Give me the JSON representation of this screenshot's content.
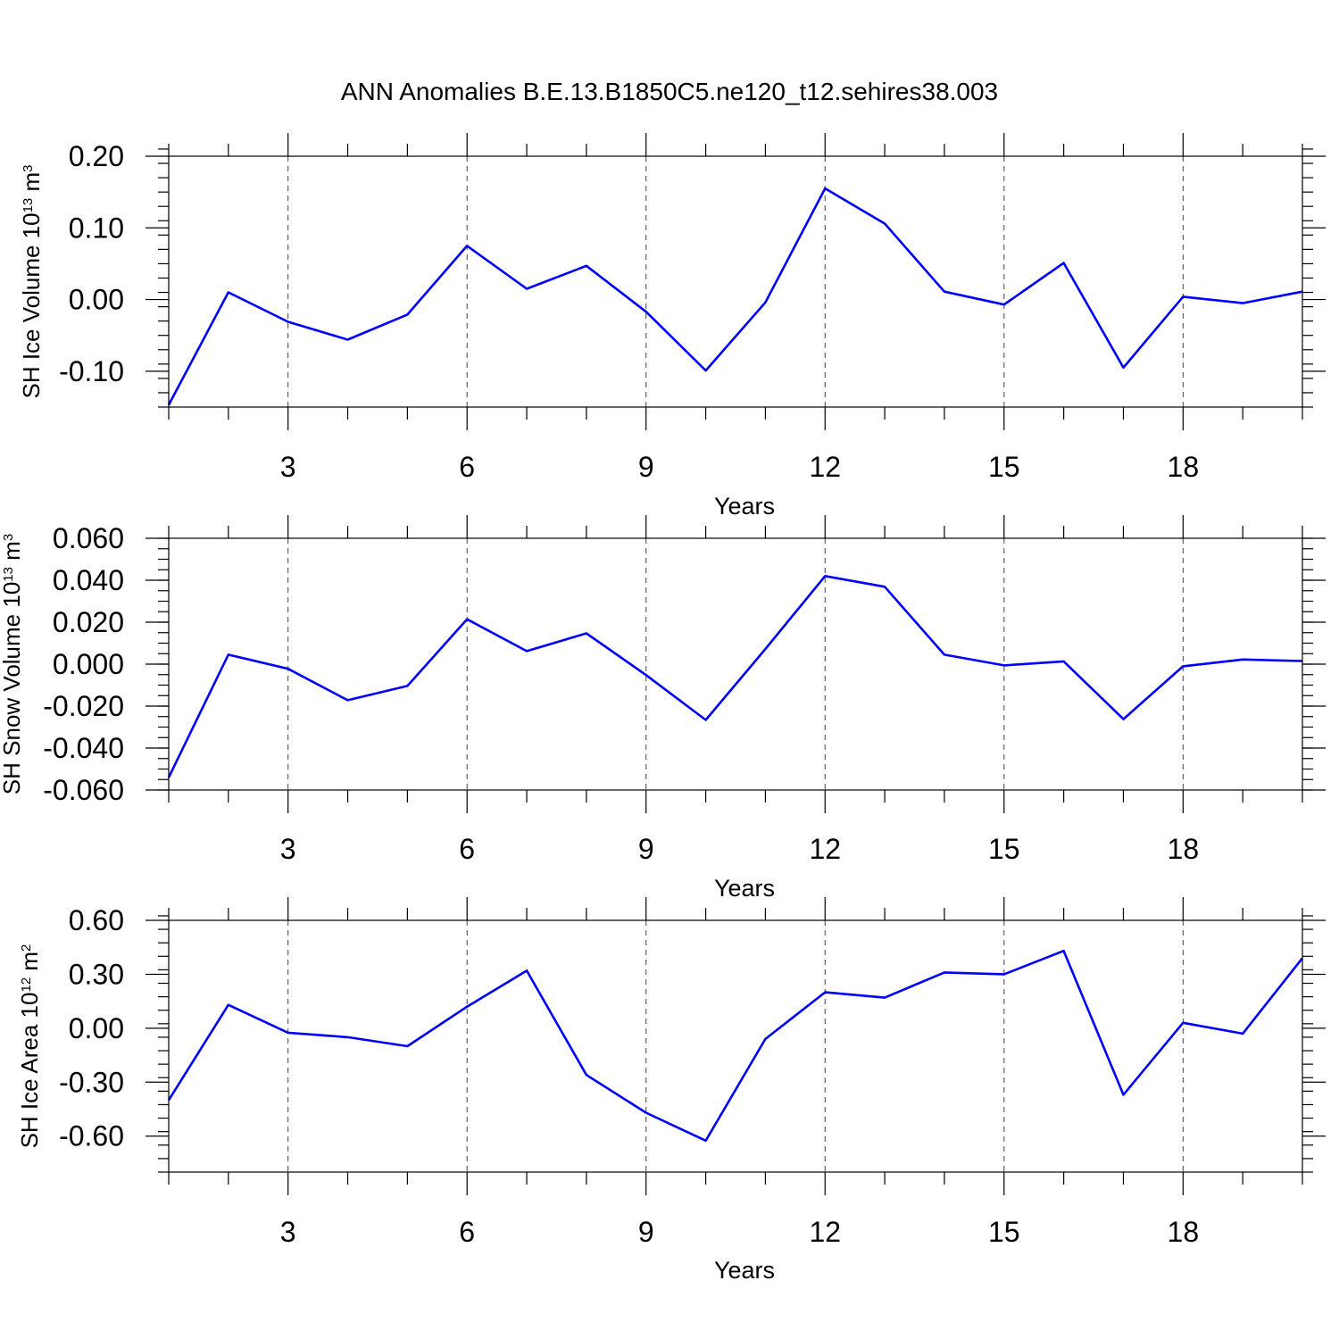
{
  "title": "ANN Anomalies B.E.13.B1850C5.ne120_t12.sehires38.003",
  "colors": {
    "line": "#0000ff",
    "axis": "#000000",
    "grid": "#444444"
  },
  "chart_data": [
    {
      "type": "line",
      "title": "ANN Anomalies B.E.13.B1850C5.ne120_t12.sehires38.003",
      "xlabel": "Years",
      "ylabel": {
        "text": "SH Ice Volume 10",
        "sup1": "13",
        "mid": " m",
        "sup2": "3"
      },
      "xlim": [
        1,
        20
      ],
      "ylim": [
        -0.15,
        0.2
      ],
      "xticks": [
        3,
        6,
        9,
        12,
        15,
        18
      ],
      "xtick_labels": [
        "3",
        "6",
        "9",
        "12",
        "15",
        "18"
      ],
      "yticks": [
        0.2,
        0.1,
        0.0,
        -0.1
      ],
      "ytick_labels": [
        "0.20",
        "0.10",
        "0.00",
        "-0.10"
      ],
      "yminor_step": 0.02,
      "grid": "x dashed",
      "series": [
        {
          "name": "SH Ice Volume",
          "x": [
            1,
            2,
            3,
            4,
            5,
            6,
            7,
            8,
            9,
            10,
            11,
            12,
            13,
            14,
            15,
            16,
            17,
            18,
            19,
            20
          ],
          "values": [
            -0.147,
            0.01,
            -0.031,
            -0.056,
            -0.021,
            0.075,
            0.015,
            0.047,
            -0.017,
            -0.099,
            -0.004,
            0.155,
            0.106,
            0.011,
            -0.007,
            0.051,
            -0.095,
            0.004,
            -0.005,
            0.011
          ]
        }
      ]
    },
    {
      "type": "line",
      "xlabel": "Years",
      "ylabel": {
        "text": "SH Snow Volume 10",
        "sup1": "13",
        "mid": " m",
        "sup2": "3"
      },
      "xlim": [
        1,
        20
      ],
      "ylim": [
        -0.06,
        0.06
      ],
      "xticks": [
        3,
        6,
        9,
        12,
        15,
        18
      ],
      "xtick_labels": [
        "3",
        "6",
        "9",
        "12",
        "15",
        "18"
      ],
      "yticks": [
        0.06,
        0.04,
        0.02,
        0.0,
        -0.02,
        -0.04,
        -0.06
      ],
      "ytick_labels": [
        "0.060",
        "0.040",
        "0.020",
        "0.000",
        "-0.020",
        "-0.040",
        "-0.060"
      ],
      "yminor_step": 0.005,
      "grid": "x dashed",
      "series": [
        {
          "name": "SH Snow Volume",
          "x": [
            1,
            2,
            3,
            4,
            5,
            6,
            7,
            8,
            9,
            10,
            11,
            12,
            13,
            14,
            15,
            16,
            17,
            18,
            19,
            20
          ],
          "values": [
            -0.054,
            0.0045,
            -0.0022,
            -0.0172,
            -0.0104,
            0.0214,
            0.0062,
            0.0147,
            -0.0052,
            -0.0266,
            0.0072,
            0.042,
            0.0369,
            0.0045,
            -0.0006,
            0.0013,
            -0.0262,
            -0.001,
            0.0022,
            0.0015
          ]
        }
      ]
    },
    {
      "type": "line",
      "xlabel": "Years",
      "ylabel": {
        "text": "SH Ice Area 10",
        "sup1": "12",
        "mid": " m",
        "sup2": "2"
      },
      "xlim": [
        1,
        20
      ],
      "ylim": [
        -0.8,
        0.6
      ],
      "xticks": [
        3,
        6,
        9,
        12,
        15,
        18
      ],
      "xtick_labels": [
        "3",
        "6",
        "9",
        "12",
        "15",
        "18"
      ],
      "yticks": [
        0.6,
        0.3,
        0.0,
        -0.3,
        -0.6
      ],
      "ytick_labels": [
        "0.60",
        "0.30",
        "0.00",
        "-0.30",
        "-0.60"
      ],
      "yminor_step": 0.075,
      "grid": "x dashed",
      "series": [
        {
          "name": "SH Ice Area",
          "x": [
            1,
            2,
            3,
            4,
            5,
            6,
            7,
            8,
            9,
            10,
            11,
            12,
            13,
            14,
            15,
            16,
            17,
            18,
            19,
            20
          ],
          "values": [
            -0.4,
            0.13,
            -0.025,
            -0.05,
            -0.1,
            0.12,
            0.32,
            -0.26,
            -0.47,
            -0.625,
            -0.06,
            0.2,
            0.17,
            0.31,
            0.3,
            0.43,
            -0.37,
            0.03,
            -0.03,
            0.39
          ]
        }
      ]
    }
  ]
}
